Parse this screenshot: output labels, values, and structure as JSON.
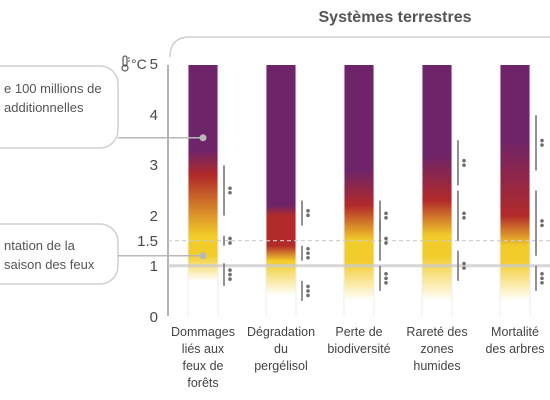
{
  "colors": {
    "very_high": "#6e2468",
    "high": "#b22a2a",
    "moderate": "#f2cc2a",
    "undetectable": "#ffffff",
    "axis": "#9a9a9a",
    "gridline": "#cccccc",
    "marker": "#6e6e6e",
    "callout_dot": "#b8b8b8"
  },
  "header": {
    "title": "Systèmes terrestres"
  },
  "axis": {
    "unit_label": "°C",
    "unit_icon": "thermometer-icon",
    "ticks": [
      "5",
      "4",
      "3",
      "2",
      "1.5",
      "1",
      "0"
    ]
  },
  "callouts": [
    {
      "text_line1": "e 100 millions de",
      "text_line2": "additionnelles",
      "target_value": 3.55
    },
    {
      "text_line1": "ntation de la",
      "text_line2": " saison des feux",
      "target_value": 1.2
    }
  ],
  "chart_data": {
    "type": "bar",
    "title": "Systèmes terrestres",
    "ylabel": "°C",
    "ylim": [
      0,
      5
    ],
    "yticks": [
      0,
      1,
      1.5,
      2,
      3,
      4,
      5
    ],
    "reference_lines": [
      1,
      1.5
    ],
    "categories": [
      "Dommages liés aux feux de forêts",
      "Dégradation du pergélisol",
      "Perte de biodiversité",
      "Rareté des zones humides",
      "Mortalité des arbres"
    ],
    "category_lines": [
      [
        "Dommages",
        "liés aux",
        "feux de",
        "forêts"
      ],
      [
        "Dégradation",
        "du",
        "pergélisol"
      ],
      [
        "Perte de",
        "biodiversité"
      ],
      [
        "Rareté des",
        "zones",
        "humides"
      ],
      [
        "Mortalité",
        "des arbres"
      ]
    ],
    "series": [
      {
        "stops": [
          {
            "value": 0.7,
            "color": "undetectable"
          },
          {
            "value": 1.2,
            "color": "moderate"
          },
          {
            "value": 1.6,
            "color": "moderate"
          },
          {
            "value": 2.8,
            "color": "high"
          },
          {
            "value": 3.3,
            "color": "very_high"
          },
          {
            "value": 5,
            "color": "very_high"
          }
        ],
        "confidence": [
          {
            "from": 2.0,
            "to": 3.0,
            "dots": 2
          },
          {
            "from": 1.4,
            "to": 1.6,
            "dots": 2
          },
          {
            "from": 0.6,
            "to": 1.05,
            "dots": 3
          }
        ]
      },
      {
        "stops": [
          {
            "value": 0.4,
            "color": "undetectable"
          },
          {
            "value": 1.1,
            "color": "moderate"
          },
          {
            "value": 1.4,
            "color": "high"
          },
          {
            "value": 2.0,
            "color": "high"
          },
          {
            "value": 2.2,
            "color": "very_high"
          },
          {
            "value": 5,
            "color": "very_high"
          }
        ],
        "confidence": [
          {
            "from": 1.8,
            "to": 2.3,
            "dots": 2
          },
          {
            "from": 1.1,
            "to": 1.4,
            "dots": 3
          },
          {
            "from": 0.3,
            "to": 0.7,
            "dots": 3
          }
        ]
      },
      {
        "stops": [
          {
            "value": 0.3,
            "color": "undetectable"
          },
          {
            "value": 1.1,
            "color": "moderate"
          },
          {
            "value": 1.5,
            "color": "moderate"
          },
          {
            "value": 2.2,
            "color": "high"
          },
          {
            "value": 2.9,
            "color": "very_high"
          },
          {
            "value": 5,
            "color": "very_high"
          }
        ],
        "confidence": [
          {
            "from": 1.7,
            "to": 2.3,
            "dots": 2
          },
          {
            "from": 1.1,
            "to": 1.9,
            "dots": 2
          },
          {
            "from": 0.5,
            "to": 1.0,
            "dots": 3
          }
        ]
      },
      {
        "stops": [
          {
            "value": 0.3,
            "color": "undetectable"
          },
          {
            "value": 1.2,
            "color": "moderate"
          },
          {
            "value": 1.6,
            "color": "moderate"
          },
          {
            "value": 2.3,
            "color": "high"
          },
          {
            "value": 3.2,
            "color": "very_high"
          },
          {
            "value": 5,
            "color": "very_high"
          }
        ],
        "confidence": [
          {
            "from": 2.6,
            "to": 3.5,
            "dots": 2
          },
          {
            "from": 1.5,
            "to": 2.5,
            "dots": 2
          },
          {
            "from": 0.7,
            "to": 1.3,
            "dots": 2
          }
        ]
      },
      {
        "stops": [
          {
            "value": 0.3,
            "color": "undetectable"
          },
          {
            "value": 1.1,
            "color": "moderate"
          },
          {
            "value": 1.4,
            "color": "moderate"
          },
          {
            "value": 2.0,
            "color": "high"
          },
          {
            "value": 3.5,
            "color": "very_high"
          },
          {
            "value": 5,
            "color": "very_high"
          }
        ],
        "confidence": [
          {
            "from": 2.9,
            "to": 4.0,
            "dots": 2
          },
          {
            "from": 1.2,
            "to": 2.5,
            "dots": 2
          },
          {
            "from": 0.5,
            "to": 1.0,
            "dots": 3
          }
        ]
      }
    ]
  }
}
